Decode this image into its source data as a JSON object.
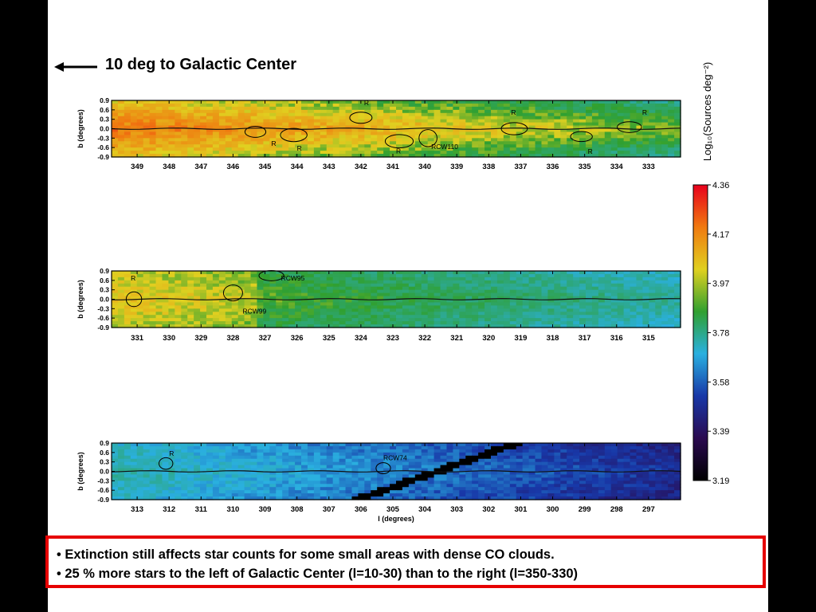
{
  "headline": "10 deg to Galactic Center",
  "note_lines": [
    "• Extinction still affects star counts for some small areas with dense CO clouds.",
    "• 25 % more stars to the left of Galactic Center (l=10-30) than to the right (l=350-330)"
  ],
  "chart_data": [
    {
      "type": "heatmap",
      "panel": 1,
      "xlabel": "",
      "ylabel": "b (degrees)",
      "xlim": [
        349.8,
        332.0
      ],
      "ylim": [
        -0.9,
        0.9
      ],
      "x_ticks": [
        "349",
        "348",
        "347",
        "346",
        "345",
        "344",
        "343",
        "342",
        "341",
        "340",
        "339",
        "338",
        "337",
        "336",
        "335",
        "334",
        "333"
      ],
      "y_ticks": [
        "0.9",
        "0.6",
        "0.3",
        "0.0",
        "-0.3",
        "-0.6",
        "-0.9"
      ],
      "base_level": 4.05,
      "annotations": [
        {
          "text": "R",
          "l": 341.9,
          "b": 0.75
        },
        {
          "text": "R",
          "l": 337.3,
          "b": 0.45
        },
        {
          "text": "R",
          "l": 333.2,
          "b": 0.45
        },
        {
          "text": "R",
          "l": 344.0,
          "b": -0.7
        },
        {
          "text": "R",
          "l": 340.9,
          "b": -0.78
        },
        {
          "text": "R",
          "l": 344.8,
          "b": -0.55
        },
        {
          "text": "RCW110",
          "l": 339.8,
          "b": -0.65
        },
        {
          "text": "R",
          "l": 334.9,
          "b": -0.8
        }
      ]
    },
    {
      "type": "heatmap",
      "panel": 2,
      "xlabel": "",
      "ylabel": "b (degrees)",
      "xlim": [
        331.8,
        314.0
      ],
      "ylim": [
        -0.9,
        0.9
      ],
      "x_ticks": [
        "331",
        "330",
        "329",
        "328",
        "327",
        "326",
        "325",
        "324",
        "323",
        "322",
        "321",
        "320",
        "319",
        "318",
        "317",
        "316",
        "315"
      ],
      "y_ticks": [
        "0.9",
        "0.6",
        "0.3",
        "0.0",
        "-0.3",
        "-0.6",
        "-0.9"
      ],
      "base_level": 3.82,
      "annotations": [
        {
          "text": "R",
          "l": 331.2,
          "b": 0.6
        },
        {
          "text": "RCW95",
          "l": 326.5,
          "b": 0.6
        },
        {
          "text": "RCW99",
          "l": 327.7,
          "b": -0.45
        }
      ]
    },
    {
      "type": "heatmap",
      "panel": 3,
      "xlabel": "l (degrees)",
      "ylabel": "b (degrees)",
      "xlim": [
        313.8,
        296.0
      ],
      "ylim": [
        -0.9,
        0.9
      ],
      "x_ticks": [
        "313",
        "312",
        "311",
        "310",
        "309",
        "308",
        "307",
        "306",
        "305",
        "304",
        "303",
        "302",
        "301",
        "300",
        "299",
        "298",
        "297"
      ],
      "y_ticks": [
        "0.9",
        "0.6",
        "0.3",
        "0.0",
        "-0.3",
        "-0.6",
        "-0.9"
      ],
      "base_level": 3.62,
      "annotations": [
        {
          "text": "R",
          "l": 312.0,
          "b": 0.5
        },
        {
          "text": "RCW74",
          "l": 305.3,
          "b": 0.35
        }
      ]
    }
  ],
  "colorbar": {
    "label": "Log₁₀(Sources deg⁻²)",
    "ticks": [
      "4.36",
      "4.17",
      "3.97",
      "3.78",
      "3.58",
      "3.39",
      "3.19"
    ],
    "stops": [
      "#e8001c",
      "#f07a10",
      "#e0d020",
      "#30a030",
      "#2ab0e0",
      "#1838a8",
      "#2a0a50",
      "#000000"
    ]
  }
}
